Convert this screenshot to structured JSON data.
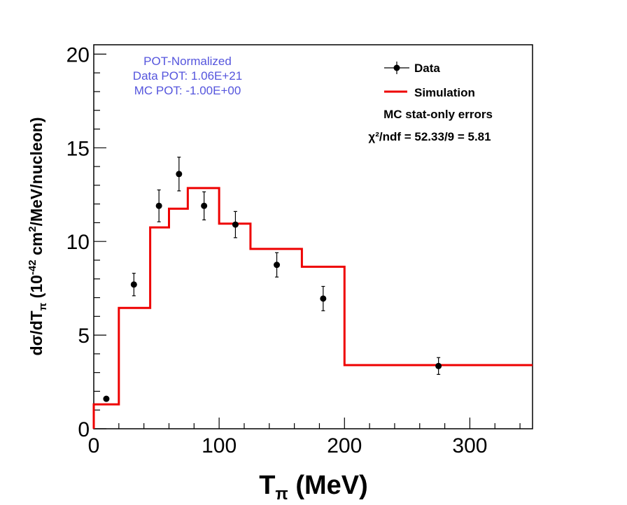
{
  "chart_data": {
    "type": "line",
    "xlabel": {
      "main": "T",
      "sub": "π",
      "unit": " (MeV)"
    },
    "ylabel": {
      "pre": "dσ/dT",
      "sub": "π",
      "mid": " (10",
      "sup1": "-42",
      "post1": " cm",
      "sup2": "2",
      "post2": "/MeV/nucleon)"
    },
    "xlim": [
      0,
      350
    ],
    "ylim": [
      0,
      20.5
    ],
    "xticks": [
      0,
      100,
      200,
      300
    ],
    "xtick_labels": [
      "0",
      "100",
      "200",
      "300"
    ],
    "yticks": [
      0,
      5,
      10,
      15,
      20
    ],
    "ytick_labels": [
      "0",
      "5",
      "10",
      "15",
      "20"
    ],
    "annotations": {
      "pot_title": "POT-Normalized",
      "data_pot": "Data POT: 1.06E+21",
      "mc_pot": "MC POT: -1.00E+00"
    },
    "legend": {
      "data_label": "Data",
      "sim_label": "Simulation",
      "errors_note": "MC stat-only errors",
      "chi2_label": "χ²/ndf = 52.33/9 = 5.81"
    },
    "series": [
      {
        "name": "Data",
        "kind": "points",
        "x": [
          10,
          32,
          52,
          68,
          88,
          113,
          146,
          183,
          275
        ],
        "y": [
          1.6,
          7.7,
          11.9,
          13.6,
          11.9,
          10.9,
          8.75,
          6.95,
          3.35
        ],
        "err": [
          0.1,
          0.6,
          0.85,
          0.9,
          0.75,
          0.7,
          0.65,
          0.65,
          0.45
        ],
        "color": "#000000"
      },
      {
        "name": "Simulation",
        "kind": "step",
        "bin_edges": [
          0,
          20,
          45,
          60,
          75,
          100,
          125,
          166,
          200,
          350
        ],
        "values": [
          1.3,
          6.45,
          10.75,
          11.75,
          12.85,
          10.95,
          9.6,
          8.65,
          3.4
        ],
        "color": "#ee0000"
      }
    ]
  }
}
